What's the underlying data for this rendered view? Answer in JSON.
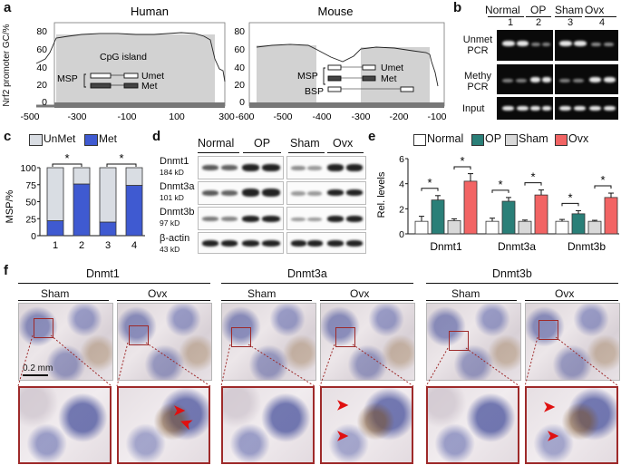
{
  "panel_a": {
    "label": "a",
    "ylabel": "Nrf2 promoter GC/%",
    "human": {
      "title": "Human",
      "island_label": "CpG island",
      "msp": "MSP",
      "umet": "Umet",
      "met": "Met",
      "xticks": [
        "-500",
        "-300",
        "-100",
        "100",
        "300"
      ],
      "yticks": [
        "0",
        "20",
        "40",
        "60",
        "80"
      ]
    },
    "mouse": {
      "title": "Mouse",
      "msp": "MSP",
      "umet": "Umet",
      "met": "Met",
      "bsp": "BSP",
      "xticks": [
        "-600",
        "-500",
        "-400",
        "-300",
        "-200",
        "-100"
      ],
      "yticks": [
        "0",
        "20",
        "40",
        "60",
        "80"
      ]
    }
  },
  "panel_b": {
    "label": "b",
    "groups": [
      "Normal",
      "OP",
      "Sham",
      "Ovx"
    ],
    "lanes": [
      "1",
      "2",
      "3",
      "4"
    ],
    "rows": [
      "Unmet PCR",
      "Methy PCR",
      "Input"
    ]
  },
  "panel_c": {
    "label": "c",
    "legend": [
      "UnMet",
      "Met"
    ],
    "colors": {
      "unmet": "#d9dde3",
      "met": "#3f5ad1"
    },
    "sig": "*",
    "chart_data": {
      "type": "bar",
      "categories": [
        "1",
        "2",
        "3",
        "4"
      ],
      "series": [
        {
          "name": "Met",
          "values": [
            22,
            76,
            20,
            74
          ]
        },
        {
          "name": "UnMet",
          "values": [
            78,
            24,
            80,
            26
          ]
        }
      ],
      "ylabel": "MSP/%",
      "ylim": [
        0,
        100
      ],
      "yticks": [
        "0",
        "25",
        "50",
        "75",
        "100"
      ]
    }
  },
  "panel_d": {
    "label": "d",
    "groups": [
      "Normal",
      "OP",
      "Sham",
      "Ovx"
    ],
    "proteins": [
      {
        "name": "Dnmt1",
        "size": "184 kD"
      },
      {
        "name": "Dnmt3a",
        "size": "101 kD"
      },
      {
        "name": "Dnmt3b",
        "size": "97 kD"
      },
      {
        "name": "β-actin",
        "size": "43 kD"
      }
    ]
  },
  "panel_e": {
    "label": "e",
    "legend": [
      "Normal",
      "OP",
      "Sham",
      "Ovx"
    ],
    "colors": {
      "Normal": "#ffffff",
      "OP": "#2a7f78",
      "Sham": "#d9d9d9",
      "Ovx": "#f26464"
    },
    "sig": "*",
    "chart_data": {
      "type": "bar",
      "categories": [
        "Dnmt1",
        "Dnmt3a",
        "Dnmt3b"
      ],
      "series": [
        {
          "name": "Normal",
          "values": [
            1.0,
            1.0,
            1.0
          ],
          "err": [
            0.4,
            0.25,
            0.15
          ]
        },
        {
          "name": "OP",
          "values": [
            2.7,
            2.6,
            1.6
          ],
          "err": [
            0.35,
            0.3,
            0.25
          ]
        },
        {
          "name": "Sham",
          "values": [
            1.05,
            1.0,
            1.0
          ],
          "err": [
            0.15,
            0.1,
            0.08
          ]
        },
        {
          "name": "Ovx",
          "values": [
            4.2,
            3.1,
            2.9
          ],
          "err": [
            0.6,
            0.4,
            0.35
          ]
        }
      ],
      "ylabel": "Rel. levels",
      "ylim": [
        0,
        6
      ],
      "yticks": [
        "0",
        "2",
        "4",
        "6"
      ]
    }
  },
  "panel_f": {
    "label": "f",
    "genes": [
      "Dnmt1",
      "Dnmt3a",
      "Dnmt3b"
    ],
    "conditions": [
      "Sham",
      "Ovx"
    ],
    "scale": "0.2 mm"
  }
}
